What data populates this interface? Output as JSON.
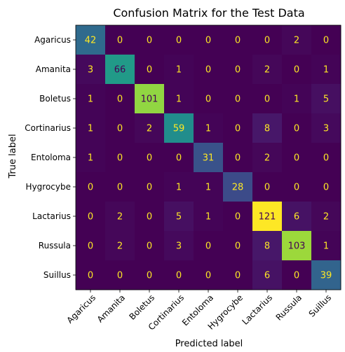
{
  "chart_data": {
    "type": "heatmap",
    "title": "Confusion Matrix for the Test Data",
    "xlabel": "Predicted label",
    "ylabel": "True label",
    "x_categories": [
      "Agaricus",
      "Amanita",
      "Boletus",
      "Cortinarius",
      "Entoloma",
      "Hygrocybe",
      "Lactarius",
      "Russula",
      "Suillus"
    ],
    "y_categories": [
      "Agaricus",
      "Amanita",
      "Boletus",
      "Cortinarius",
      "Entoloma",
      "Hygrocybe",
      "Lactarius",
      "Russula",
      "Suillus"
    ],
    "values": [
      [
        42,
        0,
        0,
        0,
        0,
        0,
        0,
        2,
        0
      ],
      [
        3,
        66,
        0,
        1,
        0,
        0,
        2,
        0,
        1
      ],
      [
        1,
        0,
        101,
        1,
        0,
        0,
        0,
        1,
        5
      ],
      [
        1,
        0,
        2,
        59,
        1,
        0,
        8,
        0,
        3
      ],
      [
        1,
        0,
        0,
        0,
        31,
        0,
        2,
        0,
        0
      ],
      [
        0,
        0,
        0,
        1,
        1,
        28,
        0,
        0,
        0
      ],
      [
        0,
        2,
        0,
        5,
        1,
        0,
        121,
        6,
        2
      ],
      [
        0,
        2,
        0,
        3,
        0,
        0,
        8,
        103,
        1
      ],
      [
        0,
        0,
        0,
        0,
        0,
        0,
        6,
        0,
        39
      ]
    ],
    "colormap": "viridis",
    "value_range": [
      0,
      121
    ],
    "grid": false,
    "legend": "none"
  }
}
